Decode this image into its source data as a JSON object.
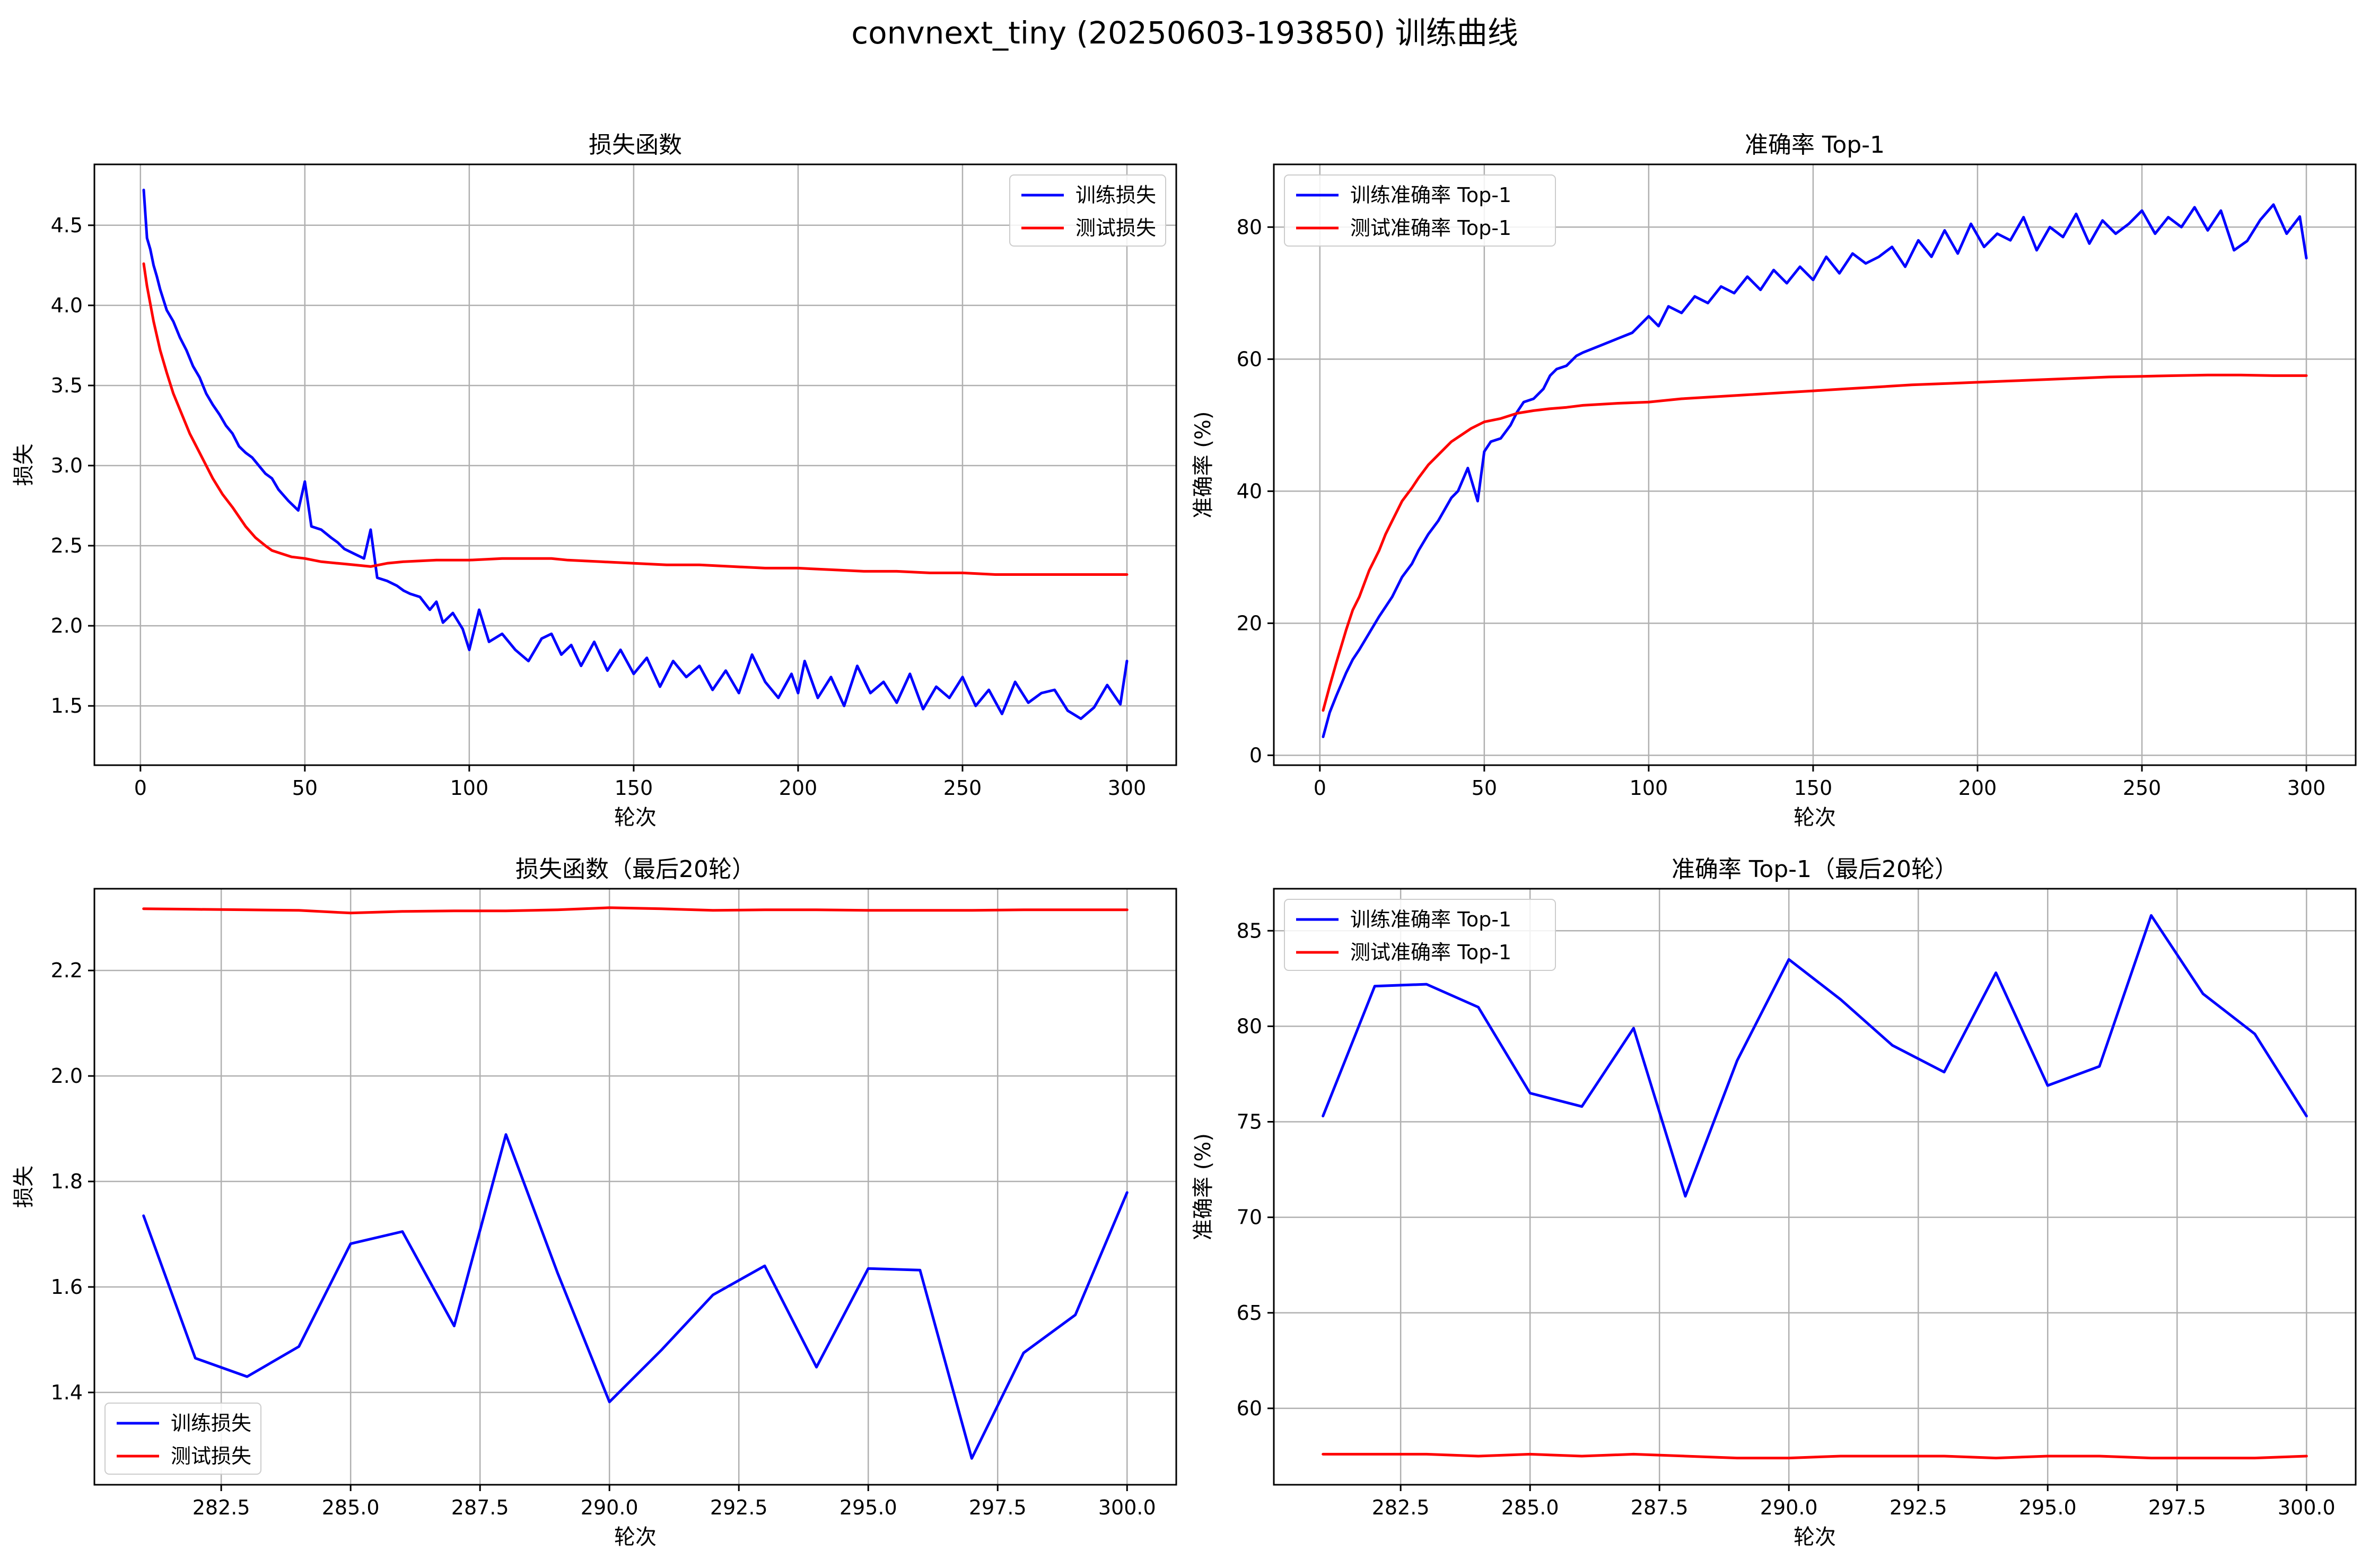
{
  "figure": {
    "title": "convnext_tiny (20250603-193850) 训练曲线"
  },
  "colors": {
    "train": "#0000ff",
    "test": "#ff0000",
    "grid": "#b0b0b0"
  },
  "chart_data": [
    {
      "type": "line",
      "title": "损失函数",
      "xlabel": "轮次",
      "ylabel": "损失",
      "xlim": [
        -14,
        315
      ],
      "ylim": [
        1.13,
        4.88
      ],
      "xticks": [
        0,
        50,
        100,
        150,
        200,
        250,
        300
      ],
      "xtick_labels": [
        "0",
        "50",
        "100",
        "150",
        "200",
        "250",
        "300"
      ],
      "yticks": [
        1.5,
        2.0,
        2.5,
        3.0,
        3.5,
        4.0,
        4.5
      ],
      "ytick_labels": [
        "1.5",
        "2.0",
        "2.5",
        "3.0",
        "3.5",
        "4.0",
        "4.5"
      ],
      "grid": true,
      "legend_position": "top-right",
      "series": [
        {
          "name": "训练损失",
          "color": "#0000ff",
          "x": [
            1,
            2,
            3,
            4,
            5,
            6,
            8,
            10,
            12,
            14,
            16,
            18,
            20,
            22,
            24,
            26,
            28,
            30,
            32,
            34,
            36,
            38,
            40,
            42,
            45,
            48,
            50,
            52,
            55,
            58,
            60,
            62,
            65,
            68,
            70,
            72,
            75,
            78,
            80,
            82,
            85,
            88,
            90,
            92,
            95,
            98,
            100,
            103,
            106,
            110,
            114,
            118,
            122,
            125,
            128,
            131,
            134,
            138,
            142,
            146,
            150,
            154,
            158,
            162,
            166,
            170,
            174,
            178,
            182,
            186,
            190,
            194,
            198,
            200,
            202,
            206,
            210,
            214,
            218,
            222,
            226,
            230,
            234,
            238,
            242,
            246,
            250,
            254,
            258,
            262,
            266,
            270,
            274,
            278,
            282,
            286,
            290,
            294,
            298,
            300
          ],
          "y": [
            4.72,
            4.42,
            4.35,
            4.25,
            4.18,
            4.1,
            3.97,
            3.9,
            3.8,
            3.72,
            3.62,
            3.55,
            3.45,
            3.38,
            3.32,
            3.25,
            3.2,
            3.12,
            3.08,
            3.05,
            3.0,
            2.95,
            2.92,
            2.85,
            2.78,
            2.72,
            2.9,
            2.62,
            2.6,
            2.55,
            2.52,
            2.48,
            2.45,
            2.42,
            2.6,
            2.3,
            2.28,
            2.25,
            2.22,
            2.2,
            2.18,
            2.1,
            2.15,
            2.02,
            2.08,
            1.98,
            1.85,
            2.1,
            1.9,
            1.95,
            1.85,
            1.78,
            1.92,
            1.95,
            1.82,
            1.88,
            1.75,
            1.9,
            1.72,
            1.85,
            1.7,
            1.8,
            1.62,
            1.78,
            1.68,
            1.75,
            1.6,
            1.72,
            1.58,
            1.82,
            1.65,
            1.55,
            1.7,
            1.58,
            1.78,
            1.55,
            1.68,
            1.5,
            1.75,
            1.58,
            1.65,
            1.52,
            1.7,
            1.48,
            1.62,
            1.55,
            1.68,
            1.5,
            1.6,
            1.45,
            1.65,
            1.52,
            1.58,
            1.6,
            1.47,
            1.42,
            1.49,
            1.63,
            1.51,
            1.78
          ]
        },
        {
          "name": "测试损失",
          "color": "#ff0000",
          "x": [
            1,
            2,
            4,
            6,
            8,
            10,
            12,
            15,
            18,
            20,
            22,
            25,
            28,
            30,
            32,
            35,
            38,
            40,
            43,
            46,
            50,
            55,
            60,
            65,
            70,
            75,
            80,
            90,
            100,
            110,
            120,
            125,
            130,
            140,
            150,
            160,
            170,
            180,
            190,
            200,
            210,
            220,
            230,
            240,
            250,
            260,
            270,
            280,
            290,
            300
          ],
          "y": [
            4.26,
            4.12,
            3.9,
            3.72,
            3.58,
            3.45,
            3.35,
            3.2,
            3.08,
            3.0,
            2.92,
            2.82,
            2.74,
            2.68,
            2.62,
            2.55,
            2.5,
            2.47,
            2.45,
            2.43,
            2.42,
            2.4,
            2.39,
            2.38,
            2.37,
            2.39,
            2.4,
            2.41,
            2.41,
            2.42,
            2.42,
            2.42,
            2.41,
            2.4,
            2.39,
            2.38,
            2.38,
            2.37,
            2.36,
            2.36,
            2.35,
            2.34,
            2.34,
            2.33,
            2.33,
            2.32,
            2.32,
            2.32,
            2.32,
            2.32
          ]
        }
      ]
    },
    {
      "type": "line",
      "title": "准确率 Top-1",
      "xlabel": "轮次",
      "ylabel": "准确率 (%)",
      "xlim": [
        -14,
        315
      ],
      "ylim": [
        -1.5,
        89.5
      ],
      "xticks": [
        0,
        50,
        100,
        150,
        200,
        250,
        300
      ],
      "xtick_labels": [
        "0",
        "50",
        "100",
        "150",
        "200",
        "250",
        "300"
      ],
      "yticks": [
        0,
        20,
        40,
        60,
        80
      ],
      "ytick_labels": [
        "0",
        "20",
        "40",
        "60",
        "80"
      ],
      "grid": true,
      "legend_position": "top-left",
      "series": [
        {
          "name": "训练准确率 Top-1",
          "color": "#0000ff",
          "x": [
            1,
            3,
            5,
            8,
            10,
            12,
            15,
            18,
            20,
            22,
            25,
            28,
            30,
            33,
            36,
            40,
            42,
            45,
            48,
            50,
            52,
            55,
            58,
            60,
            62,
            65,
            68,
            70,
            72,
            75,
            78,
            80,
            85,
            90,
            95,
            100,
            103,
            106,
            110,
            114,
            118,
            122,
            126,
            130,
            134,
            138,
            142,
            146,
            150,
            154,
            158,
            162,
            166,
            170,
            174,
            178,
            182,
            186,
            190,
            194,
            198,
            202,
            206,
            210,
            214,
            218,
            222,
            226,
            230,
            234,
            238,
            242,
            246,
            250,
            254,
            258,
            262,
            266,
            270,
            274,
            278,
            282,
            286,
            290,
            294,
            298,
            300
          ],
          "y": [
            2.8,
            6.5,
            9.0,
            12.5,
            14.5,
            16.0,
            18.5,
            21.0,
            22.5,
            24.0,
            27.0,
            29.0,
            31.0,
            33.5,
            35.5,
            39.0,
            40.0,
            43.5,
            38.5,
            46.0,
            47.5,
            48.0,
            50.0,
            52.0,
            53.5,
            54.0,
            55.5,
            57.5,
            58.5,
            59.0,
            60.5,
            61.0,
            62.0,
            63.0,
            64.0,
            66.5,
            65.0,
            68.0,
            67.0,
            69.5,
            68.5,
            71.0,
            70.0,
            72.5,
            70.5,
            73.5,
            71.5,
            74.0,
            72.0,
            75.5,
            73.0,
            76.0,
            74.5,
            75.5,
            77.0,
            74.0,
            78.0,
            75.5,
            79.5,
            76.0,
            80.5,
            77.0,
            79.0,
            78.0,
            81.5,
            76.5,
            80.0,
            78.5,
            82.0,
            77.5,
            81.0,
            79.0,
            80.5,
            82.5,
            79.0,
            81.5,
            80.0,
            83.0,
            79.5,
            82.5,
            76.5,
            77.9,
            81.1,
            83.4,
            79.0,
            81.6,
            75.3
          ]
        },
        {
          "name": "测试准确率 Top-1",
          "color": "#ff0000",
          "x": [
            1,
            3,
            5,
            8,
            10,
            12,
            15,
            18,
            20,
            22,
            25,
            28,
            30,
            33,
            36,
            40,
            43,
            46,
            50,
            55,
            60,
            65,
            70,
            75,
            80,
            90,
            100,
            110,
            120,
            130,
            140,
            150,
            160,
            170,
            180,
            190,
            200,
            210,
            220,
            230,
            240,
            250,
            260,
            270,
            280,
            290,
            300
          ],
          "y": [
            6.8,
            10.5,
            14.0,
            19.0,
            22.0,
            24.0,
            28.0,
            31.0,
            33.5,
            35.5,
            38.5,
            40.5,
            42.0,
            44.0,
            45.5,
            47.5,
            48.5,
            49.5,
            50.5,
            51.0,
            51.8,
            52.2,
            52.5,
            52.7,
            53.0,
            53.3,
            53.5,
            54.0,
            54.3,
            54.6,
            54.9,
            55.2,
            55.5,
            55.8,
            56.1,
            56.3,
            56.5,
            56.7,
            56.9,
            57.1,
            57.3,
            57.4,
            57.5,
            57.6,
            57.6,
            57.5,
            57.5
          ]
        }
      ]
    },
    {
      "type": "line",
      "title": "损失函数（最后20轮）",
      "xlabel": "轮次",
      "ylabel": "损失",
      "xlim": [
        280.05,
        300.95
      ],
      "ylim": [
        1.225,
        2.355
      ],
      "xticks": [
        282.5,
        285.0,
        287.5,
        290.0,
        292.5,
        295.0,
        297.5,
        300.0
      ],
      "xtick_labels": [
        "282.5",
        "285.0",
        "287.5",
        "290.0",
        "292.5",
        "295.0",
        "297.5",
        "300.0"
      ],
      "yticks": [
        1.4,
        1.6,
        1.8,
        2.0,
        2.2
      ],
      "ytick_labels": [
        "1.4",
        "1.6",
        "1.8",
        "2.0",
        "2.2"
      ],
      "grid": true,
      "legend_position": "bottom-left",
      "series": [
        {
          "name": "训练损失",
          "color": "#0000ff",
          "x": [
            281,
            282,
            283,
            284,
            285,
            286,
            287,
            288,
            289,
            290,
            291,
            292,
            293,
            294,
            295,
            296,
            297,
            298,
            299,
            300
          ],
          "y": [
            1.735,
            1.465,
            1.43,
            1.487,
            1.682,
            1.705,
            1.526,
            1.889,
            1.626,
            1.382,
            1.48,
            1.585,
            1.64,
            1.448,
            1.635,
            1.632,
            1.275,
            1.475,
            1.547,
            1.779
          ]
        },
        {
          "name": "测试损失",
          "color": "#ff0000",
          "x": [
            281,
            282,
            283,
            284,
            285,
            286,
            287,
            288,
            289,
            290,
            291,
            292,
            293,
            294,
            295,
            296,
            297,
            298,
            299,
            300
          ],
          "y": [
            2.317,
            2.316,
            2.315,
            2.314,
            2.309,
            2.312,
            2.313,
            2.313,
            2.315,
            2.319,
            2.317,
            2.314,
            2.315,
            2.315,
            2.314,
            2.314,
            2.314,
            2.315,
            2.315,
            2.315
          ]
        }
      ]
    },
    {
      "type": "line",
      "title": "准确率 Top-1（最后20轮）",
      "xlabel": "轮次",
      "ylabel": "准确率 (%)",
      "xlim": [
        280.05,
        300.95
      ],
      "ylim": [
        56.0,
        87.2
      ],
      "xticks": [
        282.5,
        285.0,
        287.5,
        290.0,
        292.5,
        295.0,
        297.5,
        300.0
      ],
      "xtick_labels": [
        "282.5",
        "285.0",
        "287.5",
        "290.0",
        "292.5",
        "295.0",
        "297.5",
        "300.0"
      ],
      "yticks": [
        60,
        65,
        70,
        75,
        80,
        85
      ],
      "ytick_labels": [
        "60",
        "65",
        "70",
        "75",
        "80",
        "85"
      ],
      "grid": true,
      "legend_position": "top-left",
      "series": [
        {
          "name": "训练准确率 Top-1",
          "color": "#0000ff",
          "x": [
            281,
            282,
            283,
            284,
            285,
            286,
            287,
            288,
            289,
            290,
            291,
            292,
            293,
            294,
            295,
            296,
            297,
            298,
            299,
            300
          ],
          "y": [
            75.3,
            82.1,
            82.2,
            81.0,
            76.5,
            75.8,
            79.9,
            71.1,
            78.2,
            83.5,
            81.4,
            79.0,
            77.6,
            82.8,
            76.9,
            77.9,
            85.8,
            81.7,
            79.6,
            75.3
          ]
        },
        {
          "name": "测试准确率 Top-1",
          "color": "#ff0000",
          "x": [
            281,
            282,
            283,
            284,
            285,
            286,
            287,
            288,
            289,
            290,
            291,
            292,
            293,
            294,
            295,
            296,
            297,
            298,
            299,
            300
          ],
          "y": [
            57.6,
            57.6,
            57.6,
            57.5,
            57.6,
            57.5,
            57.6,
            57.5,
            57.4,
            57.4,
            57.5,
            57.5,
            57.5,
            57.4,
            57.5,
            57.5,
            57.4,
            57.4,
            57.4,
            57.5
          ]
        }
      ]
    }
  ]
}
